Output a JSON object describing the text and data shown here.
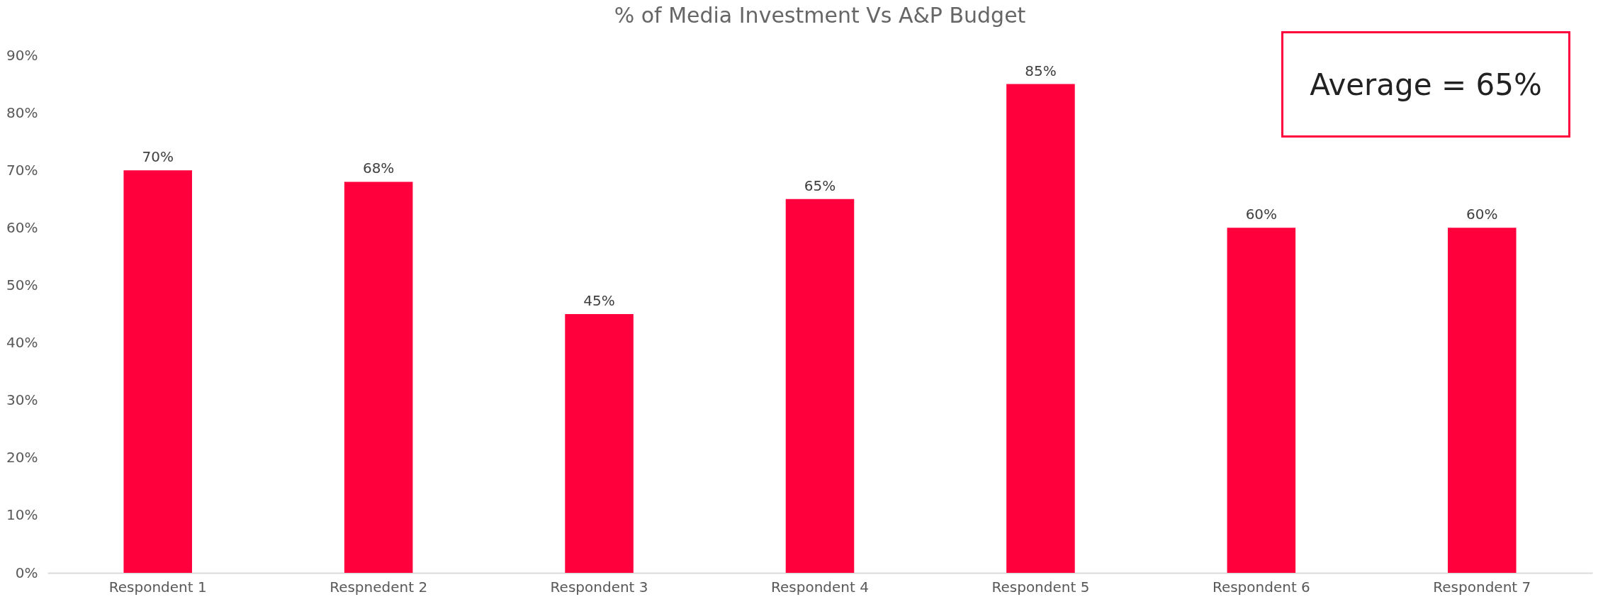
{
  "chart_data": {
    "type": "bar",
    "title": "% of Media Investment Vs A&P Budget",
    "categories": [
      "Respondent 1",
      "Respnedent 2",
      "Respondent 3",
      "Respondent 4",
      "Respondent 5",
      "Respondent 6",
      "Respondent 7"
    ],
    "values": [
      70,
      68,
      45,
      65,
      85,
      60,
      60
    ],
    "value_labels": [
      "70%",
      "68%",
      "45%",
      "65%",
      "85%",
      "60%",
      "60%"
    ],
    "color": "#ff003c",
    "ylim": [
      0,
      90
    ],
    "yticks": [
      {
        "value": 0,
        "label": "0%"
      },
      {
        "value": 10,
        "label": "10%"
      },
      {
        "value": 20,
        "label": "20%"
      },
      {
        "value": 30,
        "label": "30%"
      },
      {
        "value": 40,
        "label": "40%"
      },
      {
        "value": 50,
        "label": "50%"
      },
      {
        "value": 60,
        "label": "60%"
      },
      {
        "value": 70,
        "label": "70%"
      },
      {
        "value": 80,
        "label": "80%"
      },
      {
        "value": 90,
        "label": "90%"
      }
    ],
    "annotations": [
      "Average = 65%"
    ]
  }
}
